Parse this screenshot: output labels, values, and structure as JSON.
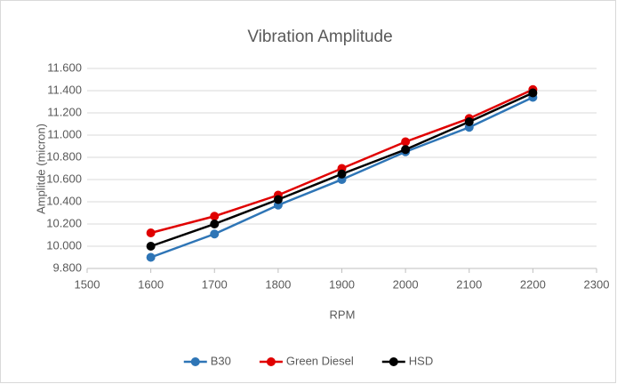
{
  "chart_data": {
    "type": "line",
    "title": "Vibration Amplitude",
    "x_label": "RPM",
    "y_label": "Amplitde (micron)",
    "x": [
      1600,
      1700,
      1800,
      1900,
      2000,
      2100,
      2200
    ],
    "series": [
      {
        "name": "B30",
        "color": "#2e75b6",
        "values": [
          9.9,
          10.11,
          10.37,
          10.6,
          10.85,
          11.07,
          11.34
        ]
      },
      {
        "name": "Green Diesel",
        "color": "#e00000",
        "values": [
          10.12,
          10.27,
          10.46,
          10.7,
          10.94,
          11.15,
          11.41
        ]
      },
      {
        "name": "HSD",
        "color": "#000000",
        "values": [
          10.0,
          10.2,
          10.42,
          10.65,
          10.87,
          11.12,
          11.38
        ]
      }
    ],
    "xlim": [
      1500,
      2300
    ],
    "xticks": [
      1500,
      1600,
      1700,
      1800,
      1900,
      2000,
      2100,
      2200,
      2300
    ],
    "ylim": [
      9.8,
      11.6
    ],
    "yticks": [
      {
        "value": 9.8,
        "label": "9.800"
      },
      {
        "value": 10.0,
        "label": "10.000"
      },
      {
        "value": 10.2,
        "label": "10.200"
      },
      {
        "value": 10.4,
        "label": "10.400"
      },
      {
        "value": 10.6,
        "label": "10.600"
      },
      {
        "value": 10.8,
        "label": "10.800"
      },
      {
        "value": 11.0,
        "label": "11.000"
      },
      {
        "value": 11.2,
        "label": "11.200"
      },
      {
        "value": 11.4,
        "label": "11.400"
      },
      {
        "value": 11.6,
        "label": "11.600"
      }
    ],
    "grid": true,
    "legend": "bottom"
  }
}
